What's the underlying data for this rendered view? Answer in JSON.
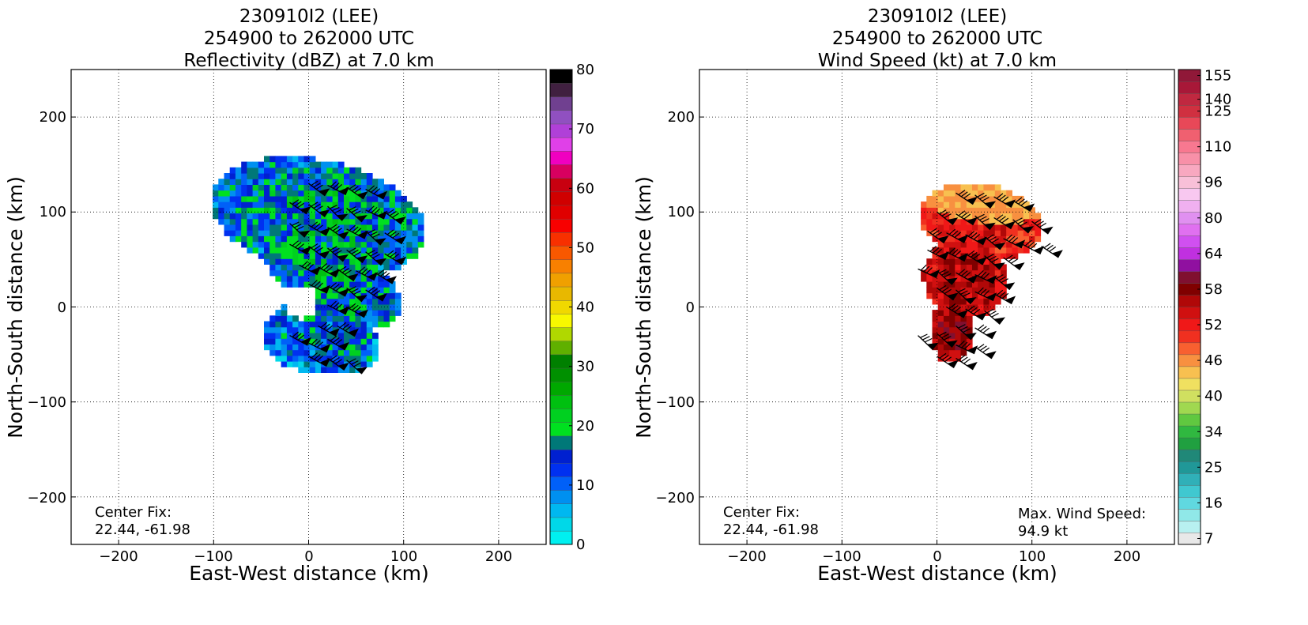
{
  "chart_data": [
    {
      "type": "heatmap",
      "title_lines": [
        "230910I2 (LEE)",
        "254900 to 262000 UTC",
        "Reflectivity (dBZ) at 7.0 km"
      ],
      "xlabel": "East-West distance (km)",
      "ylabel": "North-South distance (km)",
      "xlim": [
        -250,
        250
      ],
      "ylim": [
        -250,
        250
      ],
      "xticks": [
        -200,
        -100,
        0,
        100,
        200
      ],
      "yticks": [
        -200,
        -100,
        0,
        100,
        200
      ],
      "xtick_labels": [
        "−200",
        "−100",
        "0",
        "100",
        "200"
      ],
      "ytick_labels": [
        "−200",
        "−100",
        "0",
        "100",
        "200"
      ],
      "grid": true,
      "annotation": {
        "line1": "Center Fix:",
        "line2": "22.44, -61.98"
      },
      "colorbar": {
        "tick_labels": [
          "0",
          "10",
          "20",
          "30",
          "40",
          "50",
          "60",
          "70",
          "80"
        ],
        "colors": [
          "#00f0f0",
          "#00d8e8",
          "#00b8f0",
          "#0090f0",
          "#0060f8",
          "#0030f0",
          "#0020d0",
          "#007878",
          "#00e020",
          "#00d020",
          "#00c010",
          "#00a800",
          "#009000",
          "#008000",
          "#60b000",
          "#b0d800",
          "#f8f800",
          "#f0d800",
          "#e8b800",
          "#f0a000",
          "#f88000",
          "#f85800",
          "#f83000",
          "#f80000",
          "#e00000",
          "#d00000",
          "#c80010",
          "#d80060",
          "#f000c0",
          "#e040e8",
          "#b040d8",
          "#9050c0",
          "#704090",
          "#402040",
          "#000000"
        ],
        "min": 0,
        "max": 80
      },
      "field": {
        "components": [
          {
            "cx": 10,
            "cy": 95,
            "rx": 115,
            "ry": 60,
            "rot": -12,
            "base": 18
          },
          {
            "cx": 25,
            "cy": 30,
            "rx": 80,
            "ry": 40,
            "rot": -30,
            "base": 18
          },
          {
            "cx": 5,
            "cy": -30,
            "rx": 55,
            "ry": 38,
            "rot": 0,
            "base": 14
          },
          {
            "cx": 40,
            "cy": -40,
            "rx": 35,
            "ry": 30,
            "rot": 0,
            "base": 16
          }
        ],
        "eye": {
          "x": -8,
          "y": 5,
          "r": 18
        }
      }
    },
    {
      "type": "heatmap",
      "title_lines": [
        "230910I2 (LEE)",
        "254900 to 262000 UTC",
        "Wind Speed (kt) at 7.0 km"
      ],
      "xlabel": "East-West distance (km)",
      "ylabel": "North-South distance (km)",
      "xlim": [
        -250,
        250
      ],
      "ylim": [
        -250,
        250
      ],
      "xticks": [
        -200,
        -100,
        0,
        100,
        200
      ],
      "yticks": [
        -200,
        -100,
        0,
        100,
        200
      ],
      "xtick_labels": [
        "−200",
        "−100",
        "0",
        "100",
        "200"
      ],
      "ytick_labels": [
        "−200",
        "−100",
        "0",
        "100",
        "200"
      ],
      "grid": true,
      "annotation": {
        "line1": "Center Fix:",
        "line2": "22.44, -61.98"
      },
      "max_wind": {
        "line1": "Max. Wind Speed:",
        "line2": "94.9 kt",
        "value": 94.9
      },
      "colorbar": {
        "tick_labels": [
          "7",
          "16",
          "25",
          "34",
          "40",
          "46",
          "52",
          "58",
          "64",
          "80",
          "96",
          "110",
          "125",
          "140",
          "155"
        ],
        "colors": [
          "#e8e8e8",
          "#b8f0f0",
          "#90e8e8",
          "#60d8e0",
          "#40c8d0",
          "#30b0b8",
          "#209898",
          "#208878",
          "#20a040",
          "#30b840",
          "#60c840",
          "#a0d850",
          "#d0e060",
          "#f0e060",
          "#f8c050",
          "#f89040",
          "#f86030",
          "#f03020",
          "#f01818",
          "#d01010",
          "#b00808",
          "#800000",
          "#801030",
          "#9010a0",
          "#c030e0",
          "#d050f0",
          "#e070f0",
          "#e090f0",
          "#f0b0f0",
          "#f8c8f0",
          "#f8c0d8",
          "#f8a8c0",
          "#f890a8",
          "#f87890",
          "#f06070",
          "#e84858",
          "#d03040",
          "#c02840",
          "#a81838",
          "#901838"
        ],
        "min": 0,
        "max": 160
      },
      "field": {
        "components": [
          {
            "cx": 45,
            "cy": 90,
            "rx": 65,
            "ry": 40,
            "rot": -10,
            "base": 76
          },
          {
            "cx": 30,
            "cy": 30,
            "rx": 45,
            "ry": 40,
            "rot": -20,
            "base": 82
          },
          {
            "cx": 15,
            "cy": -25,
            "rx": 22,
            "ry": 35,
            "rot": 0,
            "base": 86
          }
        ],
        "band": {
          "cx": 45,
          "cy": 110,
          "rx": 65,
          "ry": 20,
          "rot": -8,
          "value": 60
        }
      }
    }
  ]
}
